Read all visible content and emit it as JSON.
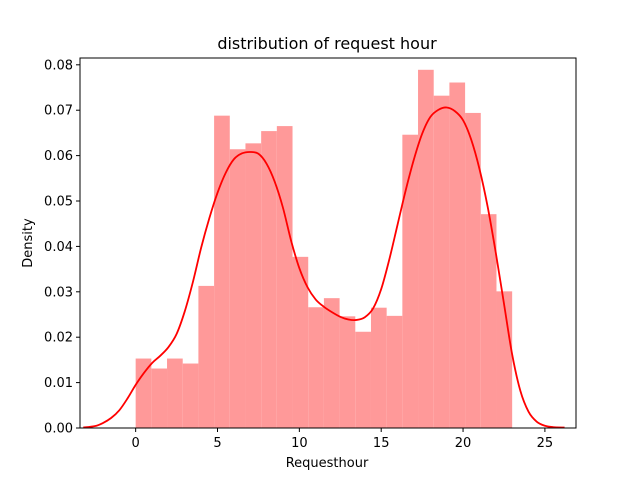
{
  "chart_data": {
    "type": "bar",
    "title": "distribution of request hour",
    "xlabel": "Requesthour",
    "ylabel": "Density",
    "xlim": [
      -3.4,
      26.9
    ],
    "ylim": [
      0,
      0.0815
    ],
    "xticks": [
      0,
      5,
      10,
      15,
      20,
      25
    ],
    "yticks": [
      0.0,
      0.01,
      0.02,
      0.03,
      0.04,
      0.05,
      0.06,
      0.07,
      0.08
    ],
    "xtick_labels": [
      "0",
      "5",
      "10",
      "15",
      "20",
      "25"
    ],
    "ytick_labels": [
      "0.00",
      "0.01",
      "0.02",
      "0.03",
      "0.04",
      "0.05",
      "0.06",
      "0.07",
      "0.08"
    ],
    "grid": false,
    "bar_color": "#ff9999",
    "line_color": "#ff0000",
    "bin_edges": [
      0,
      0.958,
      1.917,
      2.875,
      3.833,
      4.792,
      5.75,
      6.708,
      7.667,
      8.625,
      9.583,
      10.542,
      11.5,
      12.458,
      13.417,
      14.375,
      15.333,
      16.292,
      17.25,
      18.208,
      19.167,
      20.125,
      21.083,
      22.042,
      23
    ],
    "histogram": [
      0.0153,
      0.0131,
      0.0153,
      0.0142,
      0.0313,
      0.0688,
      0.0614,
      0.0627,
      0.0654,
      0.0665,
      0.0377,
      0.0266,
      0.0286,
      0.0246,
      0.0212,
      0.0265,
      0.0247,
      0.0646,
      0.0789,
      0.0732,
      0.0761,
      0.0694,
      0.0471,
      0.0301
    ],
    "kde": {
      "x": [
        -3.2,
        -2.5,
        -2,
        -1.5,
        -1,
        -0.5,
        0,
        0.5,
        1,
        1.5,
        2,
        2.5,
        3,
        3.5,
        4,
        4.5,
        5,
        5.5,
        6,
        6.5,
        7,
        7.5,
        8,
        8.5,
        9,
        9.5,
        10,
        10.5,
        11,
        11.5,
        12,
        12.5,
        13,
        13.5,
        14,
        14.5,
        15,
        15.5,
        16,
        16.5,
        17,
        17.5,
        18,
        18.5,
        19,
        19.5,
        20,
        20.5,
        21,
        21.5,
        22,
        22.5,
        23,
        23.5,
        24,
        24.5,
        25,
        25.5,
        26.2
      ],
      "y": [
        0.0001,
        0.0004,
        0.0011,
        0.0022,
        0.0039,
        0.0065,
        0.0095,
        0.0121,
        0.0143,
        0.0159,
        0.0178,
        0.0207,
        0.0257,
        0.0322,
        0.0397,
        0.0462,
        0.0518,
        0.0562,
        0.0592,
        0.0605,
        0.0608,
        0.0604,
        0.0582,
        0.0542,
        0.0485,
        0.0412,
        0.0352,
        0.031,
        0.0283,
        0.0267,
        0.0255,
        0.0245,
        0.0239,
        0.0238,
        0.0244,
        0.0263,
        0.0306,
        0.0372,
        0.0448,
        0.0524,
        0.0592,
        0.0648,
        0.0685,
        0.0701,
        0.0706,
        0.0698,
        0.0678,
        0.0635,
        0.0571,
        0.0488,
        0.0386,
        0.0274,
        0.0162,
        0.0082,
        0.0036,
        0.0014,
        0.0005,
        0.0002,
        0.0001
      ]
    }
  }
}
